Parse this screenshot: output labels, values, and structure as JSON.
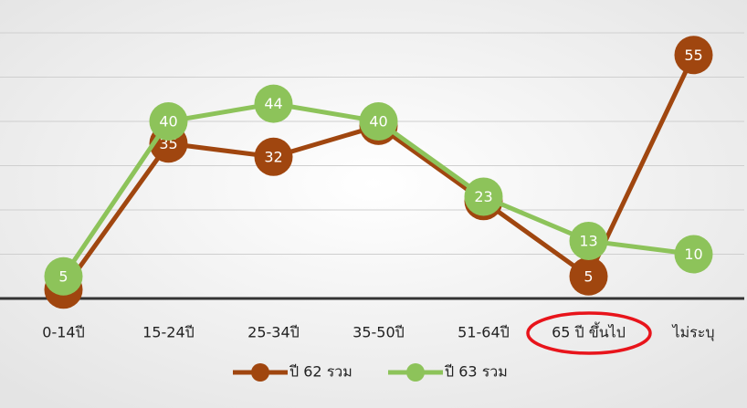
{
  "chart_data": {
    "type": "line",
    "categories": [
      "0-14ปี",
      "15-24ปี",
      "25-34ปี",
      "35-50ปี",
      "51-64ปี",
      "65 ปี ขึ้นไป",
      "ไม่ระบุ"
    ],
    "series": [
      {
        "name": "ปี 62 รวม",
        "color": "#a0460f",
        "values": [
          2,
          35,
          32,
          39,
          22,
          5,
          55
        ]
      },
      {
        "name": "ปี 63 รวม",
        "color": "#8dc35a",
        "values": [
          5,
          40,
          44,
          40,
          23,
          13,
          10
        ]
      }
    ],
    "ylim": [
      0,
      60
    ],
    "yticks": [
      0,
      10,
      20,
      30,
      40,
      50,
      60
    ],
    "grid": true,
    "legend": "bottom"
  }
}
